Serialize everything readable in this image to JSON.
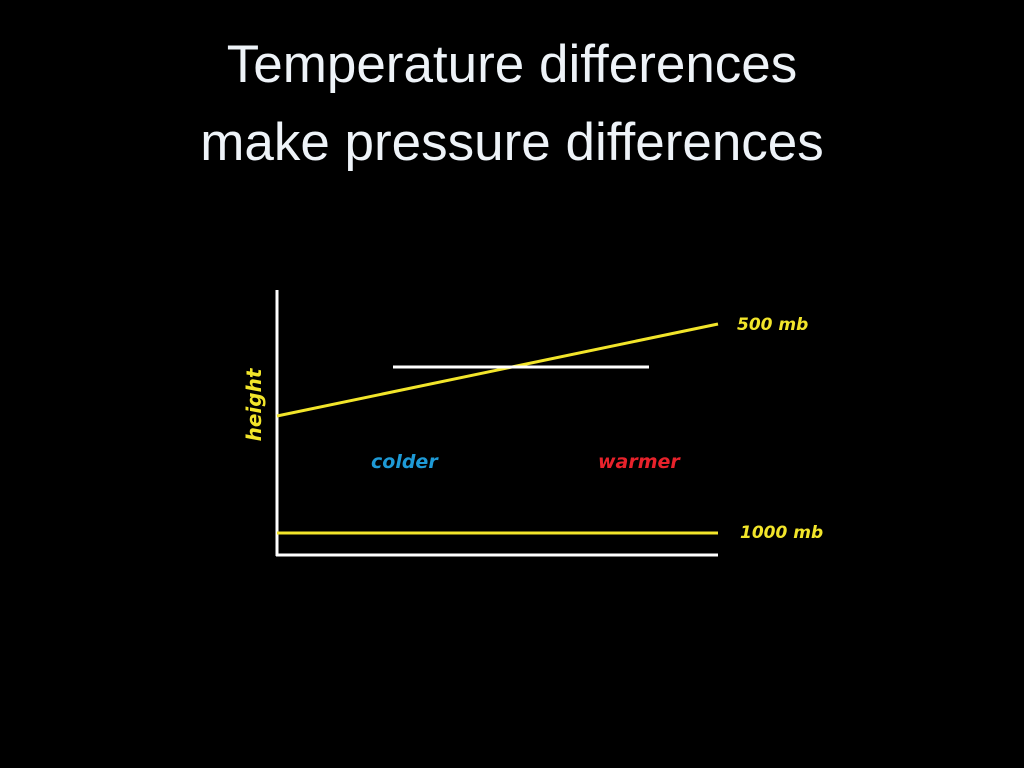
{
  "title": {
    "lines": [
      "Temperature differences",
      "make pressure differences"
    ]
  },
  "diagram": {
    "axis_label": "height",
    "left_label": "colder",
    "right_label": "warmer",
    "upper_line_label": "500 mb",
    "lower_line_label": "1000 mb"
  }
}
